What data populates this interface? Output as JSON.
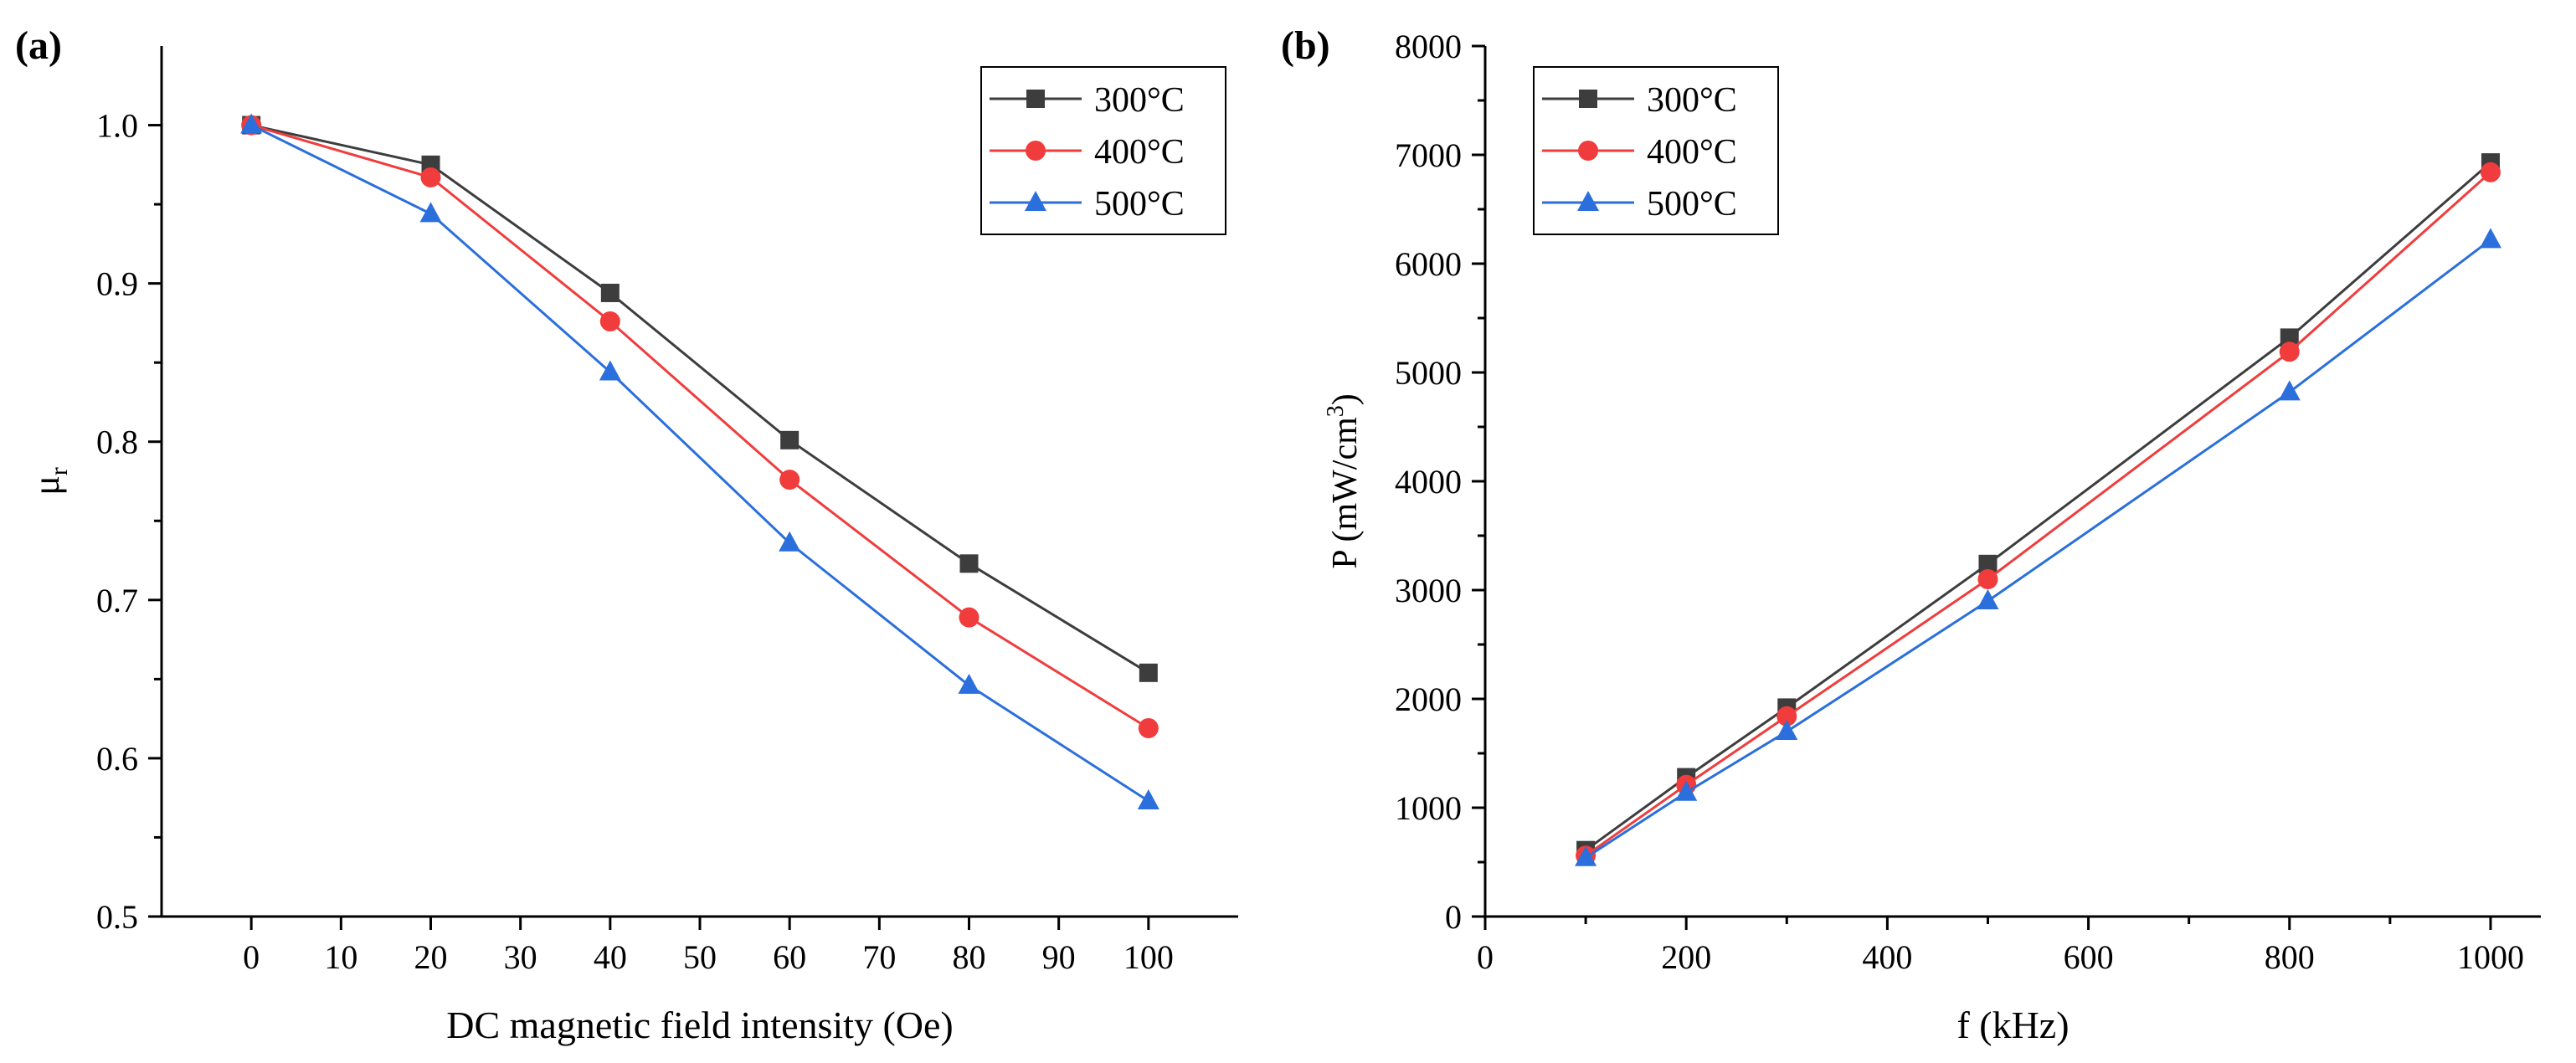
{
  "chart_data": [
    {
      "type": "line",
      "panel_label": "(a)",
      "title": "",
      "xlabel": "DC magnetic field intensity (Oe)",
      "ylabel_main": "μ",
      "ylabel_sub": "r",
      "xlim": [
        -10,
        110
      ],
      "ylim": [
        0.5,
        1.05
      ],
      "xticks": [
        0,
        10,
        20,
        30,
        40,
        50,
        60,
        70,
        80,
        90,
        100
      ],
      "xtick_labels": [
        "0",
        "10",
        "20",
        "30",
        "40",
        "50",
        "60",
        "70",
        "80",
        "90",
        "100"
      ],
      "yticks": [
        0.5,
        0.6,
        0.7,
        0.8,
        0.9,
        1.0
      ],
      "ytick_labels": [
        "0.5",
        "0.6",
        "0.7",
        "0.8",
        "0.9",
        "1.0"
      ],
      "legend_position": "top-right",
      "x": [
        0,
        20,
        40,
        60,
        80,
        100
      ],
      "series": [
        {
          "name": "300°C",
          "color": "#3d3d3d",
          "marker": "square",
          "values": [
            1.0,
            0.975,
            0.894,
            0.801,
            0.723,
            0.654
          ]
        },
        {
          "name": "400°C",
          "color": "#f03c3c",
          "marker": "circle",
          "values": [
            1.0,
            0.967,
            0.876,
            0.776,
            0.689,
            0.619
          ]
        },
        {
          "name": "500°C",
          "color": "#2a6fdb",
          "marker": "triangle",
          "values": [
            1.0,
            0.944,
            0.844,
            0.736,
            0.646,
            0.573
          ]
        }
      ]
    },
    {
      "type": "line",
      "panel_label": "(b)",
      "title": "",
      "xlabel": "f (kHz)",
      "ylabel_main": "P (mW/cm",
      "ylabel_sup": "3",
      "ylabel_end": ")",
      "xlim": [
        0,
        1050
      ],
      "ylim": [
        0,
        8000
      ],
      "xticks": [
        0,
        200,
        400,
        600,
        800,
        1000
      ],
      "xtick_labels": [
        "0",
        "200",
        "400",
        "600",
        "800",
        "1000"
      ],
      "yticks": [
        0,
        1000,
        2000,
        3000,
        4000,
        5000,
        6000,
        7000,
        8000
      ],
      "ytick_labels": [
        "0",
        "1000",
        "2000",
        "3000",
        "4000",
        "5000",
        "6000",
        "7000",
        "8000"
      ],
      "legend_position": "top-left",
      "x": [
        100,
        200,
        300,
        500,
        800,
        1000
      ],
      "series": [
        {
          "name": "300°C",
          "color": "#3d3d3d",
          "marker": "square",
          "values": [
            610,
            1280,
            1920,
            3240,
            5320,
            6930
          ]
        },
        {
          "name": "400°C",
          "color": "#f03c3c",
          "marker": "circle",
          "values": [
            560,
            1210,
            1840,
            3100,
            5190,
            6840
          ]
        },
        {
          "name": "500°C",
          "color": "#2a6fdb",
          "marker": "triangle",
          "values": [
            540,
            1140,
            1700,
            2900,
            4820,
            6220
          ]
        }
      ]
    }
  ]
}
